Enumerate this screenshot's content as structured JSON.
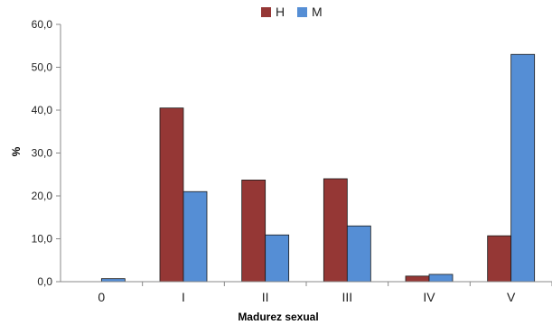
{
  "chart_data": {
    "type": "bar",
    "title": "",
    "xlabel": "Madurez sexual",
    "ylabel": "%",
    "categories": [
      "0",
      "I",
      "II",
      "III",
      "IV",
      "V"
    ],
    "series": [
      {
        "name": "H",
        "color": "#953735",
        "values": [
          0.0,
          40.5,
          23.7,
          24.0,
          1.3,
          10.7
        ]
      },
      {
        "name": "M",
        "color": "#558ED5",
        "values": [
          0.7,
          21.0,
          10.9,
          13.0,
          1.7,
          53.0
        ]
      }
    ],
    "ylim": [
      0,
      60
    ],
    "yticks": [
      "0,0",
      "10,0",
      "20,0",
      "30,0",
      "40,0",
      "50,0",
      "60,0"
    ],
    "grid": false,
    "legend_position": "top-center"
  }
}
